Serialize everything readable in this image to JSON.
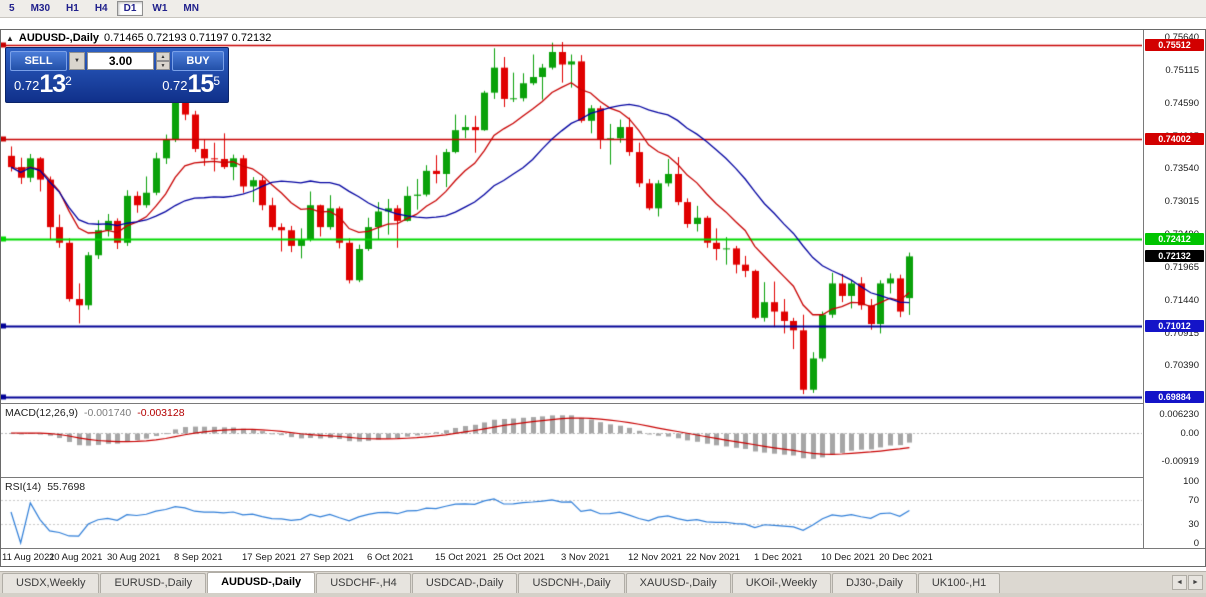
{
  "toolbar": {
    "timeframes": [
      "5",
      "M30",
      "H1",
      "H4",
      "D1",
      "W1",
      "MN"
    ],
    "active": "D1"
  },
  "chart": {
    "title_symbol": "AUDUSD-,Daily",
    "title_ohlc": "0.71465 0.72193 0.71197 0.72132"
  },
  "trade_panel": {
    "sell_label": "SELL",
    "buy_label": "BUY",
    "volume": "3.00",
    "sell_price_prefix": "0.72",
    "sell_price_main": "13",
    "sell_price_sup": "2",
    "buy_price_prefix": "0.72",
    "buy_price_main": "15",
    "buy_price_sup": "5"
  },
  "chart_data": {
    "type": "candlestick",
    "symbol": "AUDUSD-",
    "timeframe": "Daily",
    "title": "AUDUSD-,Daily 0.71465 0.72193 0.71197 0.72132",
    "ohlc_current": {
      "open": 0.71465,
      "high": 0.72193,
      "low": 0.71197,
      "close": 0.72132
    },
    "ylim": [
      0.69788,
      0.75752
    ],
    "grid": false,
    "candles": [
      [
        0.7374,
        0.7389,
        0.7349,
        0.7356
      ],
      [
        0.7356,
        0.7371,
        0.7329,
        0.7339
      ],
      [
        0.7339,
        0.7377,
        0.7332,
        0.737
      ],
      [
        0.737,
        0.7372,
        0.7317,
        0.7336
      ],
      [
        0.7336,
        0.7341,
        0.724,
        0.726
      ],
      [
        0.726,
        0.728,
        0.7227,
        0.7235
      ],
      [
        0.7235,
        0.7242,
        0.7141,
        0.7145
      ],
      [
        0.7145,
        0.717,
        0.7106,
        0.7135
      ],
      [
        0.7135,
        0.722,
        0.7128,
        0.7215
      ],
      [
        0.7215,
        0.7271,
        0.7209,
        0.7255
      ],
      [
        0.7255,
        0.7281,
        0.7245,
        0.727
      ],
      [
        0.727,
        0.7274,
        0.7225,
        0.7235
      ],
      [
        0.7235,
        0.7319,
        0.723,
        0.731
      ],
      [
        0.731,
        0.7317,
        0.7283,
        0.7295
      ],
      [
        0.7295,
        0.7341,
        0.7291,
        0.7315
      ],
      [
        0.7315,
        0.7379,
        0.7311,
        0.737
      ],
      [
        0.737,
        0.7408,
        0.7361,
        0.74
      ],
      [
        0.74,
        0.7478,
        0.7396,
        0.746
      ],
      [
        0.746,
        0.7468,
        0.7431,
        0.744
      ],
      [
        0.744,
        0.7446,
        0.738,
        0.7385
      ],
      [
        0.7385,
        0.74,
        0.7358,
        0.737
      ],
      [
        0.737,
        0.7395,
        0.7349,
        0.7369
      ],
      [
        0.7369,
        0.741,
        0.7353,
        0.7356
      ],
      [
        0.7356,
        0.7376,
        0.7335,
        0.737
      ],
      [
        0.737,
        0.7375,
        0.7315,
        0.7325
      ],
      [
        0.7325,
        0.734,
        0.73,
        0.7335
      ],
      [
        0.7335,
        0.7341,
        0.7287,
        0.7295
      ],
      [
        0.7295,
        0.7307,
        0.7255,
        0.726
      ],
      [
        0.726,
        0.7266,
        0.7221,
        0.7255
      ],
      [
        0.7255,
        0.7262,
        0.722,
        0.723
      ],
      [
        0.723,
        0.7258,
        0.721,
        0.724
      ],
      [
        0.724,
        0.7317,
        0.7237,
        0.7295
      ],
      [
        0.7295,
        0.7296,
        0.7245,
        0.726
      ],
      [
        0.726,
        0.7311,
        0.7256,
        0.729
      ],
      [
        0.729,
        0.7293,
        0.7226,
        0.7235
      ],
      [
        0.7235,
        0.7242,
        0.717,
        0.7175
      ],
      [
        0.7175,
        0.7232,
        0.7172,
        0.7225
      ],
      [
        0.7225,
        0.7275,
        0.7222,
        0.726
      ],
      [
        0.726,
        0.73,
        0.724,
        0.7285
      ],
      [
        0.7285,
        0.7305,
        0.7248,
        0.729
      ],
      [
        0.729,
        0.7295,
        0.7227,
        0.727
      ],
      [
        0.727,
        0.7325,
        0.7269,
        0.731
      ],
      [
        0.731,
        0.7337,
        0.7288,
        0.7312
      ],
      [
        0.7312,
        0.7359,
        0.7309,
        0.735
      ],
      [
        0.735,
        0.7375,
        0.733,
        0.7345
      ],
      [
        0.7345,
        0.7385,
        0.7324,
        0.738
      ],
      [
        0.738,
        0.744,
        0.7378,
        0.7415
      ],
      [
        0.7415,
        0.7439,
        0.7402,
        0.742
      ],
      [
        0.742,
        0.7438,
        0.7379,
        0.7415
      ],
      [
        0.7415,
        0.7478,
        0.7414,
        0.7475
      ],
      [
        0.7475,
        0.7546,
        0.7465,
        0.7515
      ],
      [
        0.7515,
        0.7532,
        0.7452,
        0.7465
      ],
      [
        0.7465,
        0.7507,
        0.746,
        0.7466
      ],
      [
        0.7466,
        0.7506,
        0.7461,
        0.749
      ],
      [
        0.749,
        0.7536,
        0.7487,
        0.75
      ],
      [
        0.75,
        0.7521,
        0.7464,
        0.7515
      ],
      [
        0.7515,
        0.7555,
        0.7512,
        0.754
      ],
      [
        0.754,
        0.7556,
        0.7491,
        0.752
      ],
      [
        0.752,
        0.7536,
        0.7483,
        0.7525
      ],
      [
        0.7525,
        0.7535,
        0.7427,
        0.743
      ],
      [
        0.743,
        0.7455,
        0.741,
        0.745
      ],
      [
        0.745,
        0.7454,
        0.7385,
        0.74
      ],
      [
        0.74,
        0.7425,
        0.736,
        0.7402
      ],
      [
        0.7402,
        0.7432,
        0.7395,
        0.742
      ],
      [
        0.742,
        0.7435,
        0.7374,
        0.738
      ],
      [
        0.738,
        0.7395,
        0.7324,
        0.733
      ],
      [
        0.733,
        0.7337,
        0.7287,
        0.729
      ],
      [
        0.729,
        0.7335,
        0.7277,
        0.733
      ],
      [
        0.733,
        0.7369,
        0.7325,
        0.7345
      ],
      [
        0.7345,
        0.7372,
        0.7295,
        0.73
      ],
      [
        0.73,
        0.7306,
        0.7259,
        0.7265
      ],
      [
        0.7265,
        0.7294,
        0.7253,
        0.7275
      ],
      [
        0.7275,
        0.7278,
        0.7227,
        0.7235
      ],
      [
        0.7235,
        0.7258,
        0.7207,
        0.7225
      ],
      [
        0.7225,
        0.7244,
        0.72,
        0.7226
      ],
      [
        0.7226,
        0.723,
        0.7186,
        0.72
      ],
      [
        0.72,
        0.7214,
        0.718,
        0.719
      ],
      [
        0.719,
        0.7192,
        0.7113,
        0.7115
      ],
      [
        0.7115,
        0.7172,
        0.7109,
        0.714
      ],
      [
        0.714,
        0.7173,
        0.71,
        0.7125
      ],
      [
        0.7125,
        0.7145,
        0.709,
        0.711
      ],
      [
        0.711,
        0.7115,
        0.7065,
        0.7095
      ],
      [
        0.7095,
        0.712,
        0.6993,
        0.7
      ],
      [
        0.7,
        0.706,
        0.6995,
        0.705
      ],
      [
        0.705,
        0.7125,
        0.7045,
        0.712
      ],
      [
        0.712,
        0.7187,
        0.7115,
        0.717
      ],
      [
        0.717,
        0.7185,
        0.714,
        0.715
      ],
      [
        0.715,
        0.7175,
        0.713,
        0.717
      ],
      [
        0.717,
        0.718,
        0.7128,
        0.7135
      ],
      [
        0.7135,
        0.7145,
        0.7096,
        0.7105
      ],
      [
        0.7105,
        0.7175,
        0.709,
        0.717
      ],
      [
        0.717,
        0.7186,
        0.7154,
        0.7178
      ],
      [
        0.7178,
        0.7184,
        0.7116,
        0.7125
      ],
      [
        0.71465,
        0.72193,
        0.71197,
        0.72132
      ]
    ],
    "date_ticks": [
      {
        "label": "11 Aug 2021",
        "index": 0
      },
      {
        "label": "20 Aug 2021",
        "index": 7
      },
      {
        "label": "30 Aug 2021",
        "index": 13
      },
      {
        "label": "8 Sep 2021",
        "index": 20
      },
      {
        "label": "17 Sep 2021",
        "index": 27
      },
      {
        "label": "27 Sep 2021",
        "index": 33
      },
      {
        "label": "6 Oct 2021",
        "index": 40
      },
      {
        "label": "15 Oct 2021",
        "index": 47
      },
      {
        "label": "25 Oct 2021",
        "index": 53
      },
      {
        "label": "3 Nov 2021",
        "index": 60
      },
      {
        "label": "12 Nov 2021",
        "index": 67
      },
      {
        "label": "22 Nov 2021",
        "index": 73
      },
      {
        "label": "1 Dec 2021",
        "index": 80
      },
      {
        "label": "10 Dec 2021",
        "index": 87
      },
      {
        "label": "20 Dec 2021",
        "index": 93
      }
    ],
    "price_ticks": [
      "0.75640",
      "0.75115",
      "0.74590",
      "0.74065",
      "0.73540",
      "0.73015",
      "0.72490",
      "0.71965",
      "0.71440",
      "0.70915",
      "0.70390"
    ],
    "levels": [
      {
        "price": 0.75512,
        "label": "0.75512",
        "line_color": "#c80000",
        "tag_color": "#d20000",
        "width": 1.3
      },
      {
        "price": 0.74002,
        "label": "0.74002",
        "line_color": "#c80000",
        "tag_color": "#d20000",
        "width": 1.3
      },
      {
        "price": 0.72412,
        "label": "0.72412",
        "line_color": "#00d800",
        "tag_color": "#00c400",
        "width": 2
      },
      {
        "price": 0.71012,
        "label": "0.71012",
        "line_color": "#000096",
        "tag_color": "#1414c8",
        "width": 2
      },
      {
        "price": 0.69884,
        "label": "0.69884",
        "line_color": "#000096",
        "tag_color": "#1414c8",
        "width": 2
      }
    ],
    "current_price": {
      "value": 0.72132,
      "label": "0.72132",
      "tag_color": "#000000"
    },
    "moving_averages": [
      {
        "name": "fast",
        "type": "EMA",
        "period": 10,
        "color": "#c80000"
      },
      {
        "name": "slow",
        "type": "SMA",
        "period": 20,
        "color": "#0000a0"
      }
    ],
    "style": {
      "up_color": "#0aa10a",
      "down_color": "#e00000",
      "background": "#ffffff"
    },
    "indicators": {
      "macd": {
        "label": "MACD(12,26,9)",
        "value_main": "-0.001740",
        "value_signal": "-0.003128",
        "fast": 12,
        "slow": 26,
        "signal": 9,
        "scale_labels": [
          {
            "text": "0.006230",
            "value": 0.00623
          },
          {
            "text": "0.00",
            "value": 0
          },
          {
            "text": "-0.00919",
            "value": -0.00919
          }
        ],
        "histogram_color": "#a6a6a6",
        "signal_color": "#c80000"
      },
      "rsi": {
        "label": "RSI(14)",
        "value": "55.7698",
        "period": 14,
        "scale_labels": [
          100,
          70,
          30,
          0
        ],
        "levels": [
          70,
          30
        ],
        "line_color": "#2f7ed8"
      }
    }
  },
  "tabs": {
    "items": [
      "USDX,Weekly",
      "EURUSD-,Daily",
      "AUDUSD-,Daily",
      "USDCHF-,H4",
      "USDCAD-,Daily",
      "USDCNH-,Daily",
      "XAUUSD-,Daily",
      "UKOil-,Weekly",
      "DJ30-,Daily",
      "UK100-,H1"
    ],
    "active_index": 2,
    "scroll_left": "◄",
    "scroll_right": "►"
  }
}
